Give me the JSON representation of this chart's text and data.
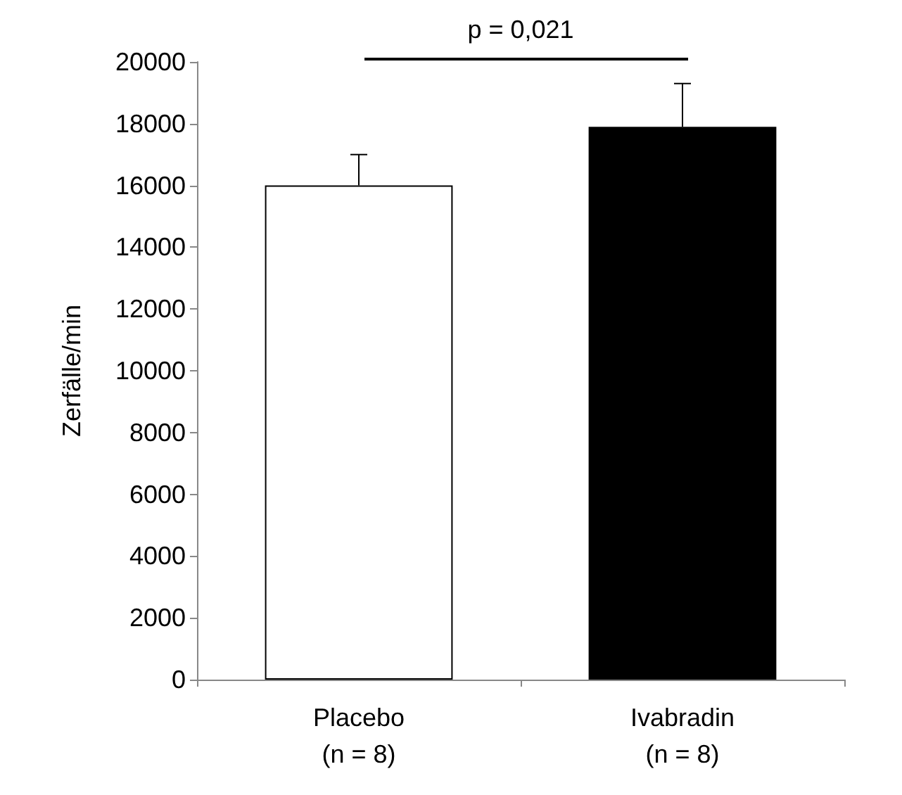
{
  "chart_data": {
    "type": "bar",
    "categories": [
      "Placebo\n(n = 8)",
      "Ivabradin\n(n = 8)"
    ],
    "values": [
      16000,
      17900
    ],
    "colors": [
      "#ffffff",
      "#000000"
    ],
    "errors": [
      [
        16000,
        17000
      ],
      [
        17900,
        19300
      ]
    ],
    "ylabel": "Zerfälle/min",
    "ylim": [
      0,
      20000
    ],
    "yticks": [
      0,
      2000,
      4000,
      6000,
      8000,
      10000,
      12000,
      14000,
      16000,
      18000,
      20000
    ],
    "grid": false,
    "annotations": [
      "p = 0,021"
    ]
  }
}
